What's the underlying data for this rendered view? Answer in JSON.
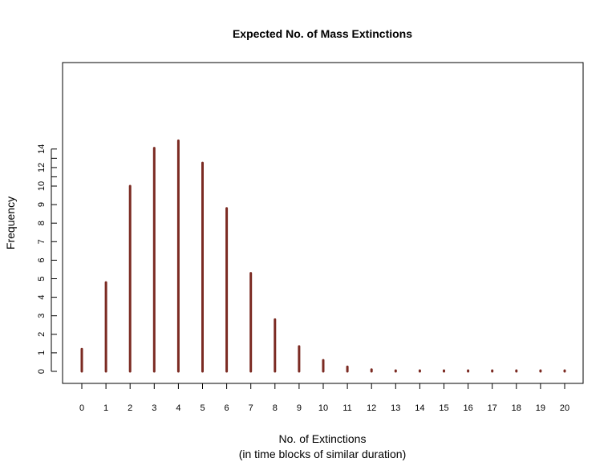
{
  "chart_data": {
    "type": "bar",
    "title": "Expected No. of Mass Extinctions",
    "xlabel": "No. of Extinctions",
    "xlabel_sub": "(in time blocks of similar duration)",
    "ylabel": "Frequency",
    "categories": [
      "0",
      "1",
      "2",
      "3",
      "4",
      "5",
      "6",
      "7",
      "8",
      "9",
      "10",
      "11",
      "12",
      "13",
      "14",
      "15",
      "16",
      "17",
      "18",
      "19",
      "20"
    ],
    "values": [
      1.2,
      4.8,
      10.0,
      14.1,
      14.9,
      12.5,
      8.8,
      5.3,
      2.8,
      1.35,
      0.6,
      0.25,
      0.1,
      0.04,
      0.02,
      0.01,
      0.0,
      0.0,
      0.0,
      0.0,
      0.0
    ],
    "y_ticks": [
      0,
      1,
      2,
      3,
      4,
      5,
      6,
      7,
      8,
      9,
      10,
      12,
      14
    ],
    "y_tick_labels": [
      "0",
      "1",
      "2",
      "3",
      "4",
      "5",
      "6",
      "7",
      "8",
      "9",
      "10",
      "12",
      "14"
    ],
    "y_axis_scale": "piecewise-linear",
    "y_axis_anchors": [
      [
        0,
        0
      ],
      [
        10,
        10
      ],
      [
        14,
        12
      ]
    ],
    "grid": false,
    "bar_style": "histogram-lines",
    "colors": {
      "bars": "#7b2a22",
      "axes": "#000000"
    }
  }
}
